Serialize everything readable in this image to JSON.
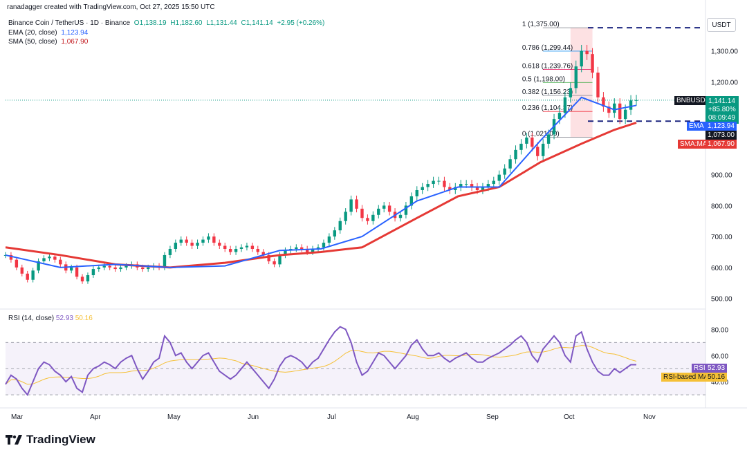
{
  "header": {
    "author_line": "ranadagger created with TradingView.com, Oct 27, 2025 15:50 UTC"
  },
  "legend": {
    "symbol": "Binance Coin / TetherUS · 1D · Binance",
    "open": "O1,138.19",
    "high": "H1,182.60",
    "low": "L1,131.44",
    "close": "C1,141.14",
    "change": "+2.95 (+0.26%)",
    "ema_label": "EMA (20, close)",
    "ema_value": "1,123.94",
    "sma_label": "SMA (50, close)",
    "sma_value": "1,067.90",
    "rsi_label": "RSI (14, close)",
    "rsi_value": "52.93",
    "rsi_ma_value": "50.16"
  },
  "currency_button": "USDT",
  "price_axis": [
    "1,300.00",
    "1,200.00",
    "900.00",
    "800.00",
    "700.00",
    "600.00",
    "500.00"
  ],
  "rsi_axis": [
    "80.00",
    "60.00",
    "40.00"
  ],
  "time_axis": [
    "Mar",
    "Apr",
    "May",
    "Jun",
    "Jul",
    "Aug",
    "Sep",
    "Oct",
    "Nov"
  ],
  "tags": {
    "symbol_tag": "BNBUSDT",
    "last_price": "1,141.14",
    "pct": "+85.80%",
    "countdown": "08:09:49",
    "ema_tag": "EMA",
    "ema_price": "1,123.94",
    "support_price": "1,073.00",
    "sma_tag": "SMA:MA",
    "sma_price": "1,067.90",
    "rsi_tag": "RSI",
    "rsi_price": "52.93",
    "rsi_ma_tag": "RSI-based MA",
    "rsi_ma_price": "50.16"
  },
  "fib_levels": [
    {
      "ratio": "1",
      "price": "(1,375.00)",
      "value": 1375
    },
    {
      "ratio": "0.786",
      "price": "(1,299.44)",
      "value": 1299.44
    },
    {
      "ratio": "0.618",
      "price": "(1,239.76)",
      "value": 1239.76
    },
    {
      "ratio": "0.5",
      "price": "(1,198.00)",
      "value": 1198
    },
    {
      "ratio": "0.382",
      "price": "(1,156.23)",
      "value": 1156.23
    },
    {
      "ratio": "0.236",
      "price": "(1,104.37)",
      "value": 1104.37
    },
    {
      "ratio": "0",
      "price": "(1,021.00)",
      "value": 1021
    }
  ],
  "logo_text": "TradingView",
  "colors": {
    "up": "#089981",
    "down": "#f23645",
    "ema": "#2962ff",
    "sma": "#e53935",
    "rsi": "#7e57c2",
    "rsi_ma": "#f5c036",
    "dashed": "#1a237e"
  },
  "chart_data": {
    "type": "candlestick",
    "symbol": "BNBUSDT",
    "x_range": [
      "Feb 2025",
      "Oct 27, 2025"
    ],
    "ylim": [
      470,
      1420
    ],
    "horizontal_lines": [
      1375,
      1073
    ],
    "ema20": [
      [
        0,
        640
      ],
      [
        20,
        600
      ],
      [
        40,
        610
      ],
      [
        60,
        600
      ],
      [
        80,
        605
      ],
      [
        100,
        655
      ],
      [
        115,
        660
      ],
      [
        130,
        700
      ],
      [
        150,
        815
      ],
      [
        165,
        860
      ],
      [
        180,
        860
      ],
      [
        195,
        1010
      ],
      [
        210,
        1150
      ],
      [
        222,
        1110
      ],
      [
        230,
        1124
      ]
    ],
    "sma50": [
      [
        0,
        665
      ],
      [
        20,
        640
      ],
      [
        40,
        610
      ],
      [
        60,
        600
      ],
      [
        80,
        615
      ],
      [
        100,
        640
      ],
      [
        115,
        650
      ],
      [
        130,
        665
      ],
      [
        150,
        760
      ],
      [
        165,
        830
      ],
      [
        180,
        860
      ],
      [
        195,
        940
      ],
      [
        210,
        1000
      ],
      [
        222,
        1045
      ],
      [
        230,
        1068
      ]
    ],
    "closes": [
      640,
      625,
      600,
      580,
      560,
      590,
      620,
      630,
      635,
      625,
      610,
      590,
      600,
      570,
      555,
      575,
      595,
      600,
      605,
      600,
      595,
      600,
      605,
      610,
      600,
      595,
      600,
      605,
      600,
      640,
      660,
      680,
      690,
      680,
      670,
      680,
      690,
      700,
      680,
      670,
      660,
      650,
      660,
      665,
      670,
      660,
      650,
      640,
      620,
      610,
      640,
      655,
      660,
      665,
      660,
      650,
      660,
      665,
      680,
      700,
      720,
      750,
      780,
      820,
      790,
      760,
      750,
      770,
      790,
      800,
      780,
      760,
      770,
      800,
      830,
      850,
      860,
      870,
      880,
      880,
      860,
      850,
      860,
      870,
      870,
      860,
      850,
      860,
      870,
      880,
      900,
      920,
      950,
      980,
      1000,
      1020,
      990,
      960,
      1000,
      1030,
      1080,
      1100,
      1150,
      1180,
      1250,
      1300,
      1290,
      1230,
      1150,
      1120,
      1100,
      1130,
      1080,
      1110,
      1140,
      1141
    ],
    "rsi": [
      38,
      45,
      42,
      35,
      30,
      40,
      50,
      55,
      53,
      48,
      45,
      40,
      44,
      35,
      32,
      45,
      50,
      52,
      55,
      53,
      50,
      55,
      58,
      60,
      50,
      42,
      48,
      55,
      58,
      75,
      70,
      60,
      62,
      55,
      50,
      55,
      60,
      62,
      55,
      48,
      45,
      42,
      45,
      50,
      55,
      50,
      45,
      40,
      35,
      42,
      52,
      58,
      60,
      58,
      55,
      50,
      55,
      58,
      65,
      72,
      78,
      82,
      80,
      70,
      55,
      45,
      48,
      55,
      62,
      60,
      55,
      50,
      55,
      60,
      68,
      72,
      65,
      60,
      60,
      62,
      58,
      55,
      58,
      60,
      62,
      58,
      55,
      55,
      58,
      60,
      62,
      65,
      68,
      72,
      75,
      70,
      60,
      55,
      65,
      70,
      75,
      70,
      60,
      55,
      75,
      78,
      65,
      55,
      48,
      45,
      45,
      50,
      47,
      50,
      53,
      53
    ],
    "rsi_ylim": [
      20,
      95
    ],
    "rsi_levels": [
      70,
      50,
      30
    ],
    "fibonacci": [
      1375,
      1299.44,
      1239.76,
      1198,
      1156.23,
      1104.37,
      1021
    ]
  }
}
